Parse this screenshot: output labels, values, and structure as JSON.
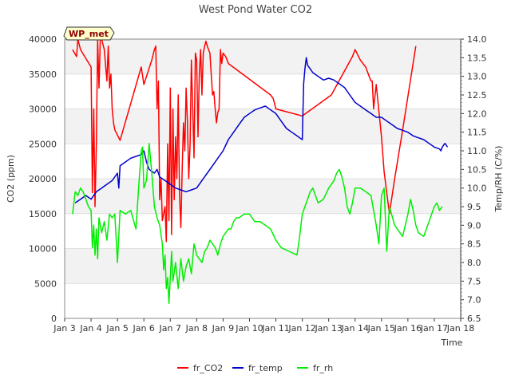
{
  "chart_data": {
    "type": "line",
    "title": "West Pond Water CO2",
    "xlabel": "Time",
    "ylabel_left": "CO2 (ppm)",
    "ylabel_right": "Temp/RH (C/%)",
    "badge": "WP_met",
    "x_ticks": [
      "Jan 3",
      "Jan 4",
      "Jan 5",
      "Jan 6",
      "Jan 7",
      "Jan 8",
      "Jan 9",
      "Jan 10",
      "Jan 11",
      "Jan 12",
      "Jan 13",
      "Jan 14",
      "Jan 15",
      "Jan 16",
      "Jan 17",
      "Jan 18"
    ],
    "xlim": [
      3,
      18
    ],
    "ylim_left": [
      0,
      40000
    ],
    "yticks_left": [
      0,
      5000,
      10000,
      15000,
      20000,
      25000,
      30000,
      35000,
      40000
    ],
    "ylim_right": [
      6.5,
      14.0
    ],
    "yticks_right": [
      6.5,
      7.0,
      7.5,
      8.0,
      8.5,
      9.0,
      9.5,
      10.0,
      10.5,
      11.0,
      11.5,
      12.0,
      12.5,
      13.0,
      13.5,
      14.0
    ],
    "grid": "horizontal bands",
    "legend": "bottom",
    "series": [
      {
        "name": "fr_CO2",
        "axis": "left",
        "color": "#ff0000",
        "x": [
          3.3,
          3.45,
          3.5,
          3.6,
          4.0,
          4.05,
          4.1,
          4.15,
          4.2,
          4.25,
          4.3,
          4.35,
          4.4,
          4.5,
          4.6,
          4.65,
          4.7,
          4.75,
          4.8,
          4.85,
          4.9,
          5.1,
          5.9,
          6.0,
          6.3,
          6.4,
          6.45,
          6.5,
          6.55,
          6.6,
          6.65,
          6.7,
          6.8,
          6.85,
          6.9,
          6.95,
          7.0,
          7.05,
          7.1,
          7.15,
          7.2,
          7.25,
          7.3,
          7.35,
          7.4,
          7.45,
          7.5,
          7.55,
          7.6,
          7.65,
          7.7,
          7.75,
          7.8,
          7.85,
          7.9,
          7.95,
          8.0,
          8.05,
          8.1,
          8.15,
          8.2,
          8.25,
          8.3,
          8.35,
          8.4,
          8.45,
          8.5,
          8.6,
          8.65,
          8.7,
          8.75,
          8.8,
          8.85,
          8.9,
          8.95,
          9.0,
          9.1,
          9.15,
          9.2,
          10.8,
          10.9,
          11.0,
          12.0,
          13.1,
          13.9,
          14.0,
          14.2,
          14.4,
          14.5,
          14.6,
          14.65,
          14.7,
          14.8,
          15.0,
          15.1,
          15.2,
          15.3,
          15.5,
          15.8,
          16.3
        ],
        "values": [
          38500,
          37500,
          40000,
          38500,
          36000,
          18000,
          30000,
          16000,
          25000,
          40000,
          33000,
          40000,
          40000,
          38500,
          34000,
          39000,
          33000,
          35000,
          30000,
          28000,
          27000,
          25500,
          36000,
          33500,
          37000,
          38500,
          39000,
          30000,
          34000,
          17000,
          20000,
          14000,
          16000,
          11000,
          25000,
          14000,
          33000,
          12000,
          30000,
          17000,
          26000,
          20000,
          32000,
          18000,
          13000,
          21000,
          28000,
          24000,
          33000,
          28000,
          20000,
          25000,
          37000,
          30000,
          23000,
          38000,
          37000,
          26000,
          35000,
          38500,
          32000,
          38000,
          39000,
          39700,
          39000,
          38500,
          38000,
          32000,
          32500,
          30000,
          28000,
          29500,
          30000,
          38500,
          36500,
          38000,
          37500,
          37000,
          36500,
          32000,
          31500,
          30000,
          29000,
          32000,
          37500,
          38500,
          37000,
          36000,
          35000,
          34000,
          34000,
          30000,
          33500,
          26000,
          21000,
          18000,
          15000,
          20000,
          27000,
          39000
        ]
      },
      {
        "name": "fr_temp",
        "axis": "right",
        "color": "#0000cc",
        "x": [
          3.4,
          3.6,
          3.8,
          4.0,
          4.2,
          4.4,
          4.6,
          4.8,
          5.0,
          5.05,
          5.1,
          5.3,
          5.5,
          5.7,
          5.9,
          6.0,
          6.1,
          6.2,
          6.4,
          6.5,
          6.6,
          6.8,
          7.0,
          7.2,
          7.4,
          7.6,
          7.8,
          8.0,
          8.2,
          8.4,
          8.6,
          8.8,
          9.0,
          9.2,
          9.4,
          9.6,
          9.8,
          10.0,
          10.2,
          10.4,
          10.6,
          10.8,
          11.0,
          11.2,
          11.4,
          11.6,
          11.8,
          11.9,
          12.0,
          12.05,
          12.1,
          12.15,
          12.2,
          12.3,
          12.4,
          12.6,
          12.8,
          13.0,
          13.2,
          13.4,
          13.6,
          13.8,
          14.0,
          14.2,
          14.4,
          14.6,
          14.8,
          15.0,
          15.2,
          15.4,
          15.6,
          15.8,
          16.0,
          16.2,
          16.4,
          16.6,
          16.8,
          17.0,
          17.2,
          17.25,
          17.3,
          17.4,
          17.5
        ],
        "values": [
          9.6,
          9.7,
          9.8,
          9.7,
          9.9,
          10.0,
          10.1,
          10.2,
          10.4,
          10.0,
          10.6,
          10.7,
          10.8,
          10.85,
          10.9,
          11.0,
          10.7,
          10.5,
          10.4,
          10.5,
          10.3,
          10.2,
          10.1,
          10.0,
          9.95,
          9.9,
          9.95,
          10.0,
          10.2,
          10.4,
          10.6,
          10.8,
          11.0,
          11.3,
          11.5,
          11.7,
          11.9,
          12.0,
          12.1,
          12.15,
          12.2,
          12.1,
          12.0,
          11.8,
          11.6,
          11.5,
          11.4,
          11.35,
          11.3,
          12.8,
          13.2,
          13.5,
          13.3,
          13.2,
          13.1,
          13.0,
          12.9,
          12.95,
          12.9,
          12.8,
          12.7,
          12.5,
          12.3,
          12.2,
          12.1,
          12.0,
          11.9,
          11.9,
          11.8,
          11.7,
          11.6,
          11.55,
          11.5,
          11.4,
          11.35,
          11.3,
          11.2,
          11.1,
          11.05,
          11.0,
          11.1,
          11.2,
          11.1
        ]
      },
      {
        "name": "fr_rh",
        "axis": "right",
        "color": "#00ee00",
        "x": [
          3.3,
          3.4,
          3.5,
          3.6,
          3.7,
          3.8,
          3.9,
          4.0,
          4.05,
          4.1,
          4.15,
          4.2,
          4.25,
          4.3,
          4.4,
          4.5,
          4.6,
          4.7,
          4.8,
          4.9,
          5.0,
          5.1,
          5.3,
          5.5,
          5.7,
          5.8,
          5.9,
          5.95,
          6.0,
          6.1,
          6.2,
          6.3,
          6.4,
          6.5,
          6.6,
          6.7,
          6.75,
          6.8,
          6.85,
          6.9,
          6.95,
          7.0,
          7.05,
          7.1,
          7.2,
          7.3,
          7.4,
          7.5,
          7.6,
          7.7,
          7.8,
          7.9,
          8.0,
          8.1,
          8.2,
          8.3,
          8.4,
          8.5,
          8.6,
          8.7,
          8.8,
          8.9,
          9.0,
          9.1,
          9.2,
          9.3,
          9.4,
          9.5,
          9.6,
          9.8,
          10.0,
          10.2,
          10.4,
          10.6,
          10.8,
          11.0,
          11.2,
          11.5,
          11.8,
          11.9,
          12.0,
          12.1,
          12.2,
          12.3,
          12.4,
          12.5,
          12.6,
          12.8,
          13.0,
          13.2,
          13.3,
          13.4,
          13.5,
          13.6,
          13.7,
          13.8,
          13.9,
          14.0,
          14.2,
          14.4,
          14.6,
          14.8,
          14.9,
          15.0,
          15.1,
          15.2,
          15.3,
          15.5,
          15.7,
          15.8,
          15.9,
          16.0,
          16.1,
          16.2,
          16.3,
          16.4,
          16.6,
          16.8,
          17.0,
          17.1,
          17.2,
          17.3
        ],
        "values": [
          9.3,
          9.9,
          9.8,
          10.0,
          9.9,
          9.7,
          9.5,
          9.4,
          8.4,
          9.0,
          8.2,
          8.9,
          8.1,
          9.2,
          8.8,
          9.1,
          8.6,
          9.3,
          9.2,
          9.3,
          8.0,
          9.4,
          9.3,
          9.4,
          8.9,
          10.0,
          11.0,
          11.1,
          10.0,
          10.2,
          11.2,
          10.4,
          9.5,
          9.2,
          9.0,
          8.5,
          7.8,
          8.2,
          7.3,
          7.6,
          6.9,
          7.6,
          8.3,
          7.5,
          8.0,
          7.3,
          8.1,
          7.5,
          7.9,
          8.1,
          7.7,
          8.5,
          8.2,
          8.1,
          8.0,
          8.3,
          8.4,
          8.6,
          8.5,
          8.4,
          8.2,
          8.5,
          8.7,
          8.8,
          8.9,
          8.9,
          9.1,
          9.2,
          9.2,
          9.3,
          9.3,
          9.1,
          9.1,
          9.0,
          8.9,
          8.6,
          8.4,
          8.3,
          8.2,
          8.7,
          9.3,
          9.5,
          9.7,
          9.9,
          10.0,
          9.8,
          9.6,
          9.7,
          10.0,
          10.2,
          10.4,
          10.5,
          10.3,
          10.0,
          9.5,
          9.3,
          9.6,
          10.0,
          10.0,
          9.9,
          9.8,
          9.0,
          8.5,
          9.8,
          10.0,
          8.3,
          9.5,
          9.0,
          8.8,
          8.7,
          9.0,
          9.3,
          9.7,
          9.4,
          9.0,
          8.8,
          8.7,
          9.1,
          9.5,
          9.6,
          9.4,
          9.5
        ]
      }
    ]
  }
}
